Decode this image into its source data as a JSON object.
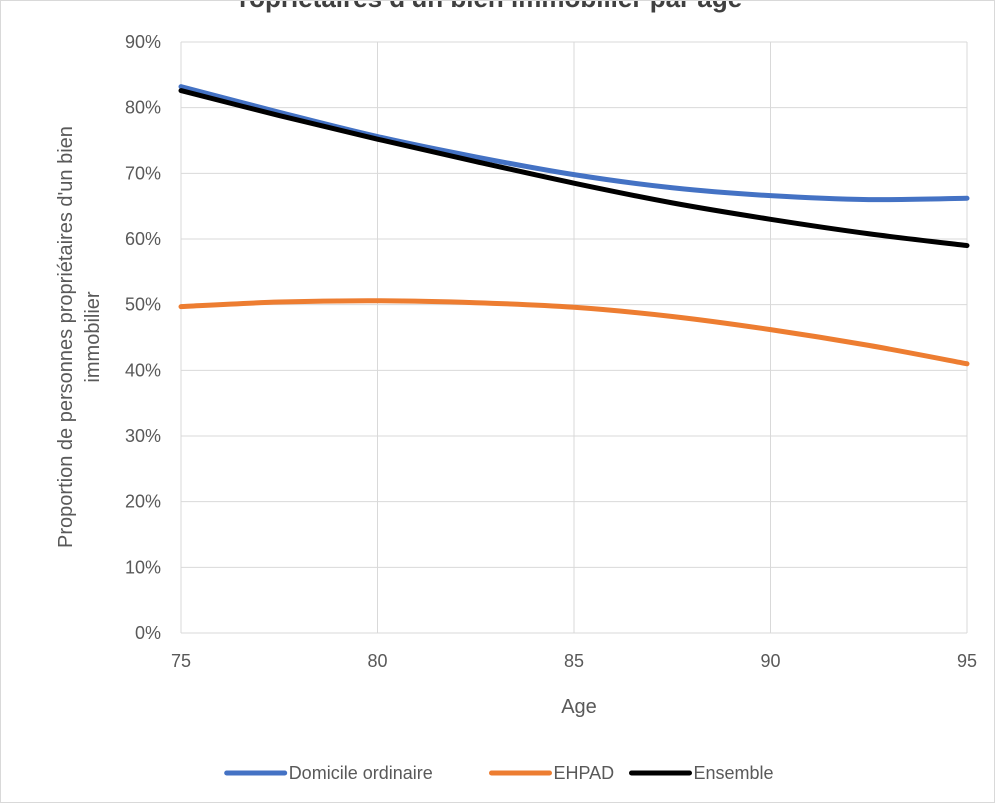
{
  "chart_data": {
    "type": "line",
    "title": "ropriétaires d'un bien immobilier par âge",
    "xlabel": "Age",
    "ylabel_line1": "Proportion de personnes propriétaires d'un bien",
    "ylabel_line2": "immobilier",
    "xlim": [
      75,
      95
    ],
    "ylim": [
      0,
      0.9
    ],
    "x_ticks": [
      75,
      80,
      85,
      90,
      95
    ],
    "x_tick_labels": [
      "75",
      "80",
      "85",
      "90",
      "95"
    ],
    "y_ticks": [
      0,
      0.1,
      0.2,
      0.3,
      0.4,
      0.5,
      0.6,
      0.7,
      0.8,
      0.9
    ],
    "y_tick_labels": [
      "0%",
      "10%",
      "20%",
      "30%",
      "40%",
      "50%",
      "60%",
      "70%",
      "80%",
      "90%"
    ],
    "grid": true,
    "legend_position": "bottom",
    "x": [
      75,
      77.5,
      80,
      82.5,
      85,
      87.5,
      90,
      92.5,
      95
    ],
    "series": [
      {
        "name": "Domicile ordinaire",
        "color": "#4472C4",
        "values": [
          0.832,
          0.793,
          0.756,
          0.725,
          0.698,
          0.678,
          0.666,
          0.66,
          0.662
        ]
      },
      {
        "name": "EHPAD",
        "color": "#ED7D31",
        "values": [
          0.497,
          0.504,
          0.506,
          0.503,
          0.496,
          0.482,
          0.462,
          0.438,
          0.41
        ]
      },
      {
        "name": "Ensemble",
        "color": "#000000",
        "values": [
          0.826,
          0.788,
          0.752,
          0.718,
          0.685,
          0.655,
          0.63,
          0.608,
          0.59
        ]
      }
    ]
  }
}
